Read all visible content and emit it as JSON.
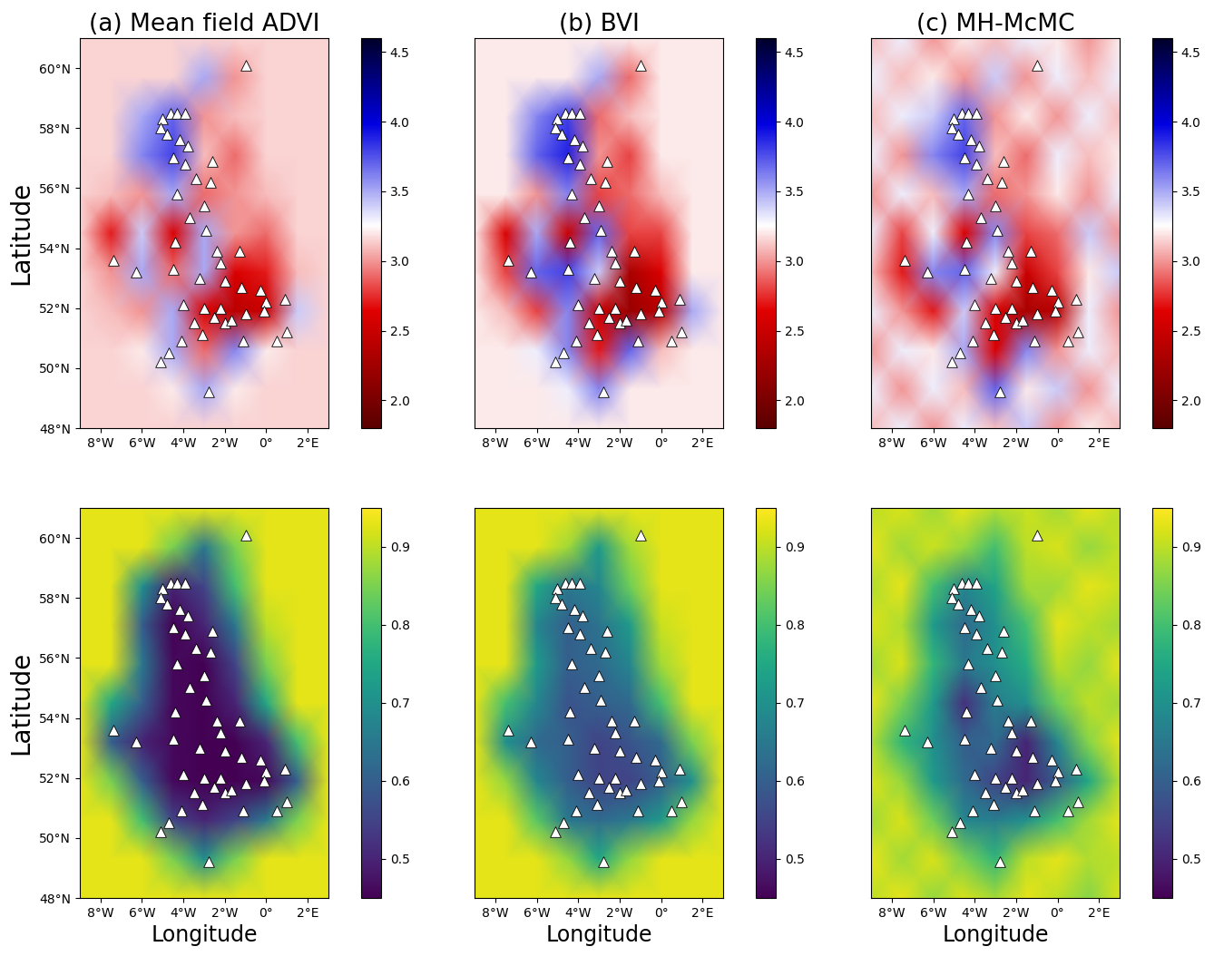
{
  "stations": {
    "lon": [
      -7.4,
      -6.3,
      -5.0,
      -4.6,
      -4.3,
      -3.9,
      -5.1,
      -4.8,
      -4.2,
      -3.8,
      -4.5,
      -3.9,
      -2.6,
      -3.4,
      -4.3,
      -3.0,
      -3.7,
      -2.9,
      -4.4,
      -2.4,
      -1.3,
      -4.5,
      -3.2,
      -2.0,
      -1.2,
      -0.3,
      0.9,
      -4.0,
      -3.0,
      -2.2,
      -2.5,
      -2.0,
      -1.7,
      -1.0,
      0.0,
      -0.1,
      1.0,
      0.5,
      -3.5,
      -4.1,
      -4.7,
      -5.1,
      -2.8,
      -1.1,
      -2.2,
      -3.1,
      -2.7,
      -1.0
    ],
    "lat": [
      53.6,
      53.2,
      58.3,
      58.5,
      58.5,
      58.5,
      58.0,
      57.8,
      57.6,
      57.4,
      57.0,
      56.8,
      56.9,
      56.3,
      55.8,
      55.4,
      55.0,
      54.6,
      54.2,
      53.9,
      53.9,
      53.3,
      53.0,
      52.9,
      52.7,
      52.6,
      52.3,
      52.1,
      52.0,
      52.0,
      51.7,
      51.5,
      51.6,
      51.8,
      52.2,
      51.9,
      51.2,
      50.9,
      51.5,
      50.9,
      50.5,
      50.2,
      49.2,
      50.9,
      53.5,
      51.1,
      56.2,
      60.1
    ]
  },
  "chart_data": [
    {
      "type": "heatmap",
      "title": "(a) Mean field ADVI",
      "ylabel": "Latitude",
      "tick_labels": true,
      "x": [
        -9,
        -7.5,
        -6,
        -4.5,
        -3,
        -1.5,
        0,
        1.5,
        3
      ],
      "y": [
        48,
        49.3,
        50.6,
        51.9,
        53.2,
        54.5,
        55.8,
        57.1,
        58.4,
        59.7,
        61
      ],
      "cells": [
        [
          3.15,
          3.15,
          3.15,
          3.15,
          3.15,
          3.15,
          3.15,
          3.15,
          3.15
        ],
        [
          3.15,
          3.15,
          3.15,
          3.2,
          3.5,
          3.2,
          3.15,
          3.15,
          3.15
        ],
        [
          3.15,
          3.15,
          3.2,
          3.5,
          2.9,
          3.6,
          3.2,
          3.15,
          3.15
        ],
        [
          3.15,
          3.1,
          3.0,
          3.5,
          2.6,
          2.4,
          2.5,
          3.4,
          3.15
        ],
        [
          3.15,
          3.0,
          3.5,
          2.9,
          3.5,
          2.6,
          2.7,
          3.1,
          3.15
        ],
        [
          3.15,
          2.7,
          3.4,
          2.6,
          3.5,
          3.0,
          2.9,
          3.15,
          3.15
        ],
        [
          3.15,
          3.1,
          3.0,
          3.5,
          2.9,
          3.0,
          3.1,
          3.15,
          3.15
        ],
        [
          3.15,
          3.15,
          3.6,
          3.8,
          3.1,
          2.9,
          3.15,
          3.15,
          3.15
        ],
        [
          3.15,
          3.15,
          3.5,
          3.7,
          3.0,
          3.1,
          3.15,
          3.15,
          3.15
        ],
        [
          3.15,
          3.15,
          3.15,
          3.15,
          3.5,
          3.0,
          3.15,
          3.15,
          3.15
        ],
        [
          3.15,
          3.15,
          3.15,
          3.15,
          3.15,
          3.15,
          3.15,
          3.15,
          3.15
        ]
      ],
      "color_range": [
        1.8,
        4.6
      ],
      "color_ticks": [
        2.0,
        2.5,
        3.0,
        3.5,
        4.0,
        4.5
      ],
      "xlim": [
        -9,
        3
      ],
      "ylim": [
        48,
        61
      ],
      "xticks": [
        {
          "value": -8,
          "label": "8°W"
        },
        {
          "value": -6,
          "label": "6°W"
        },
        {
          "value": -4,
          "label": "4°W"
        },
        {
          "value": -2,
          "label": "2°W"
        },
        {
          "value": 0,
          "label": "0°"
        },
        {
          "value": 2,
          "label": "2°E"
        }
      ],
      "yticks": [
        {
          "value": 48,
          "label": "48°N"
        },
        {
          "value": 50,
          "label": "50°N"
        },
        {
          "value": 52,
          "label": "52°N"
        },
        {
          "value": 54,
          "label": "54°N"
        },
        {
          "value": 56,
          "label": "56°N"
        },
        {
          "value": 58,
          "label": "58°N"
        },
        {
          "value": 60,
          "label": "60°N"
        }
      ]
    },
    {
      "type": "heatmap",
      "title": "(b) BVI",
      "tick_labels": "x",
      "x": [
        -9,
        -7.5,
        -6,
        -4.5,
        -3,
        -1.5,
        0,
        1.5,
        3
      ],
      "y": [
        48,
        49.3,
        50.6,
        51.9,
        53.2,
        54.5,
        55.8,
        57.1,
        58.4,
        59.7,
        61
      ],
      "cells": [
        [
          3.2,
          3.2,
          3.2,
          3.2,
          3.2,
          3.2,
          3.2,
          3.2,
          3.2
        ],
        [
          3.2,
          3.2,
          3.2,
          3.3,
          3.6,
          3.2,
          3.2,
          3.2,
          3.2
        ],
        [
          3.2,
          3.2,
          3.3,
          3.6,
          2.7,
          3.7,
          3.1,
          3.2,
          3.2
        ],
        [
          3.2,
          3.1,
          2.8,
          3.6,
          2.5,
          2.2,
          2.4,
          3.5,
          3.2
        ],
        [
          3.2,
          2.8,
          3.7,
          3.8,
          3.4,
          2.3,
          2.6,
          3.2,
          3.2
        ],
        [
          3.2,
          2.6,
          3.5,
          2.5,
          3.7,
          2.8,
          2.8,
          3.2,
          3.2
        ],
        [
          3.2,
          3.2,
          3.0,
          3.6,
          2.8,
          2.9,
          3.1,
          3.2,
          3.2
        ],
        [
          3.2,
          3.2,
          3.7,
          3.9,
          3.0,
          2.8,
          3.2,
          3.2,
          3.2
        ],
        [
          3.2,
          3.2,
          3.6,
          3.8,
          2.9,
          3.1,
          3.2,
          3.2,
          3.2
        ],
        [
          3.2,
          3.2,
          3.2,
          3.2,
          3.5,
          2.9,
          3.2,
          3.2,
          3.2
        ],
        [
          3.2,
          3.2,
          3.2,
          3.2,
          3.2,
          3.2,
          3.2,
          3.2,
          3.2
        ]
      ],
      "color_range": [
        1.8,
        4.6
      ],
      "color_ticks": [
        2.0,
        2.5,
        3.0,
        3.5,
        4.0,
        4.5
      ],
      "xlim": [
        -9,
        3
      ],
      "ylim": [
        48,
        61
      ],
      "xticks": [
        {
          "value": -8,
          "label": "8°W"
        },
        {
          "value": -6,
          "label": "6°W"
        },
        {
          "value": -4,
          "label": "4°W"
        },
        {
          "value": -2,
          "label": "2°W"
        },
        {
          "value": 0,
          "label": "0°"
        },
        {
          "value": 2,
          "label": "2°E"
        }
      ]
    },
    {
      "type": "heatmap",
      "title": "(c) MH-McMC",
      "tick_labels": "x",
      "x": [
        -9,
        -7.5,
        -6,
        -4.5,
        -3,
        -1.5,
        0,
        1.5,
        3
      ],
      "y": [
        48,
        49.3,
        50.6,
        51.9,
        53.2,
        54.5,
        55.8,
        57.1,
        58.4,
        59.7,
        61
      ],
      "cells": [
        [
          3.1,
          3.3,
          3.0,
          3.3,
          3.1,
          3.4,
          3.0,
          3.2,
          3.1
        ],
        [
          3.3,
          3.0,
          3.3,
          3.1,
          3.7,
          3.2,
          3.4,
          3.0,
          3.3
        ],
        [
          3.0,
          3.3,
          3.2,
          3.5,
          2.6,
          3.6,
          3.0,
          3.3,
          3.1
        ],
        [
          3.3,
          3.0,
          2.7,
          3.4,
          2.6,
          2.3,
          2.4,
          3.3,
          3.0
        ],
        [
          3.1,
          2.7,
          3.6,
          3.7,
          3.3,
          2.5,
          2.8,
          3.2,
          3.4
        ],
        [
          3.3,
          2.8,
          3.3,
          2.6,
          3.6,
          2.8,
          2.9,
          3.4,
          3.0
        ],
        [
          3.0,
          3.3,
          3.1,
          3.5,
          2.9,
          3.0,
          3.2,
          3.0,
          3.3
        ],
        [
          3.3,
          3.0,
          3.6,
          3.8,
          3.1,
          2.9,
          3.3,
          3.1,
          3.2
        ],
        [
          3.1,
          3.3,
          3.4,
          3.7,
          3.0,
          3.2,
          3.0,
          3.3,
          3.1
        ],
        [
          3.3,
          3.1,
          3.2,
          3.0,
          3.4,
          3.0,
          3.3,
          3.1,
          3.3
        ],
        [
          3.1,
          3.3,
          3.0,
          3.2,
          3.1,
          3.3,
          3.2,
          3.0,
          3.2
        ]
      ],
      "color_range": [
        1.8,
        4.6
      ],
      "color_ticks": [
        2.0,
        2.5,
        3.0,
        3.5,
        4.0,
        4.5
      ],
      "xlim": [
        -9,
        3
      ],
      "ylim": [
        48,
        61
      ],
      "xticks": [
        {
          "value": -8,
          "label": "8°W"
        },
        {
          "value": -6,
          "label": "6°W"
        },
        {
          "value": -4,
          "label": "4°W"
        },
        {
          "value": -2,
          "label": "2°W"
        },
        {
          "value": 0,
          "label": "0°"
        },
        {
          "value": 2,
          "label": "2°E"
        }
      ]
    },
    {
      "type": "heatmap",
      "xlabel": "Longitude",
      "ylabel": "Latitude",
      "tick_labels": true,
      "x": [
        -9,
        -7.5,
        -6,
        -4.5,
        -3,
        -1.5,
        0,
        1.5,
        3
      ],
      "y": [
        48,
        49.3,
        50.6,
        51.9,
        53.2,
        54.5,
        55.8,
        57.1,
        58.4,
        59.7,
        61
      ],
      "cells": [
        [
          0.93,
          0.93,
          0.93,
          0.93,
          0.93,
          0.93,
          0.93,
          0.93,
          0.93
        ],
        [
          0.93,
          0.93,
          0.93,
          0.85,
          0.7,
          0.85,
          0.93,
          0.93,
          0.93
        ],
        [
          0.93,
          0.93,
          0.8,
          0.55,
          0.5,
          0.55,
          0.65,
          0.85,
          0.93
        ],
        [
          0.93,
          0.85,
          0.6,
          0.46,
          0.45,
          0.45,
          0.46,
          0.6,
          0.93
        ],
        [
          0.93,
          0.6,
          0.5,
          0.46,
          0.45,
          0.45,
          0.5,
          0.8,
          0.93
        ],
        [
          0.93,
          0.75,
          0.6,
          0.46,
          0.45,
          0.5,
          0.75,
          0.93,
          0.93
        ],
        [
          0.93,
          0.93,
          0.65,
          0.46,
          0.45,
          0.55,
          0.85,
          0.93,
          0.93
        ],
        [
          0.93,
          0.93,
          0.6,
          0.45,
          0.5,
          0.65,
          0.9,
          0.93,
          0.93
        ],
        [
          0.93,
          0.93,
          0.7,
          0.5,
          0.55,
          0.8,
          0.93,
          0.93,
          0.93
        ],
        [
          0.93,
          0.93,
          0.93,
          0.85,
          0.65,
          0.85,
          0.93,
          0.93,
          0.93
        ],
        [
          0.93,
          0.93,
          0.93,
          0.93,
          0.93,
          0.93,
          0.93,
          0.93,
          0.93
        ]
      ],
      "color_range": [
        0.45,
        0.95
      ],
      "color_ticks": [
        0.5,
        0.6,
        0.7,
        0.8,
        0.9
      ],
      "xlim": [
        -9,
        3
      ],
      "ylim": [
        48,
        61
      ],
      "xticks": [
        {
          "value": -8,
          "label": "8°W"
        },
        {
          "value": -6,
          "label": "6°W"
        },
        {
          "value": -4,
          "label": "4°W"
        },
        {
          "value": -2,
          "label": "2°W"
        },
        {
          "value": 0,
          "label": "0°"
        },
        {
          "value": 2,
          "label": "2°E"
        }
      ],
      "yticks": [
        {
          "value": 48,
          "label": "48°N"
        },
        {
          "value": 50,
          "label": "50°N"
        },
        {
          "value": 52,
          "label": "52°N"
        },
        {
          "value": 54,
          "label": "54°N"
        },
        {
          "value": 56,
          "label": "56°N"
        },
        {
          "value": 58,
          "label": "58°N"
        },
        {
          "value": 60,
          "label": "60°N"
        }
      ]
    },
    {
      "type": "heatmap",
      "xlabel": "Longitude",
      "tick_labels": "x",
      "x": [
        -9,
        -7.5,
        -6,
        -4.5,
        -3,
        -1.5,
        0,
        1.5,
        3
      ],
      "y": [
        48,
        49.3,
        50.6,
        51.9,
        53.2,
        54.5,
        55.8,
        57.1,
        58.4,
        59.7,
        61
      ],
      "cells": [
        [
          0.93,
          0.93,
          0.93,
          0.93,
          0.93,
          0.93,
          0.93,
          0.93,
          0.93
        ],
        [
          0.93,
          0.93,
          0.93,
          0.87,
          0.75,
          0.87,
          0.93,
          0.93,
          0.93
        ],
        [
          0.93,
          0.93,
          0.82,
          0.65,
          0.62,
          0.65,
          0.72,
          0.87,
          0.93
        ],
        [
          0.93,
          0.87,
          0.68,
          0.6,
          0.55,
          0.55,
          0.6,
          0.7,
          0.93
        ],
        [
          0.93,
          0.7,
          0.62,
          0.6,
          0.55,
          0.58,
          0.62,
          0.85,
          0.93
        ],
        [
          0.93,
          0.8,
          0.68,
          0.58,
          0.6,
          0.62,
          0.8,
          0.93,
          0.93
        ],
        [
          0.93,
          0.93,
          0.72,
          0.6,
          0.62,
          0.68,
          0.88,
          0.93,
          0.93
        ],
        [
          0.93,
          0.93,
          0.68,
          0.6,
          0.64,
          0.72,
          0.91,
          0.93,
          0.93
        ],
        [
          0.93,
          0.93,
          0.75,
          0.65,
          0.68,
          0.84,
          0.93,
          0.93,
          0.93
        ],
        [
          0.93,
          0.93,
          0.93,
          0.88,
          0.72,
          0.88,
          0.93,
          0.93,
          0.93
        ],
        [
          0.93,
          0.93,
          0.93,
          0.93,
          0.93,
          0.93,
          0.93,
          0.93,
          0.93
        ]
      ],
      "color_range": [
        0.45,
        0.95
      ],
      "color_ticks": [
        0.5,
        0.6,
        0.7,
        0.8,
        0.9
      ],
      "xlim": [
        -9,
        3
      ],
      "ylim": [
        48,
        61
      ],
      "xticks": [
        {
          "value": -8,
          "label": "8°W"
        },
        {
          "value": -6,
          "label": "6°W"
        },
        {
          "value": -4,
          "label": "4°W"
        },
        {
          "value": -2,
          "label": "2°W"
        },
        {
          "value": 0,
          "label": "0°"
        },
        {
          "value": 2,
          "label": "2°E"
        }
      ]
    },
    {
      "type": "heatmap",
      "xlabel": "Longitude",
      "tick_labels": "x",
      "x": [
        -9,
        -7.5,
        -6,
        -4.5,
        -3,
        -1.5,
        0,
        1.5,
        3
      ],
      "y": [
        48,
        49.3,
        50.6,
        51.9,
        53.2,
        54.5,
        55.8,
        57.1,
        58.4,
        59.7,
        61
      ],
      "cells": [
        [
          0.9,
          0.93,
          0.87,
          0.92,
          0.88,
          0.93,
          0.9,
          0.86,
          0.92
        ],
        [
          0.93,
          0.88,
          0.92,
          0.85,
          0.78,
          0.9,
          0.93,
          0.89,
          0.9
        ],
        [
          0.88,
          0.92,
          0.84,
          0.68,
          0.66,
          0.7,
          0.8,
          0.88,
          0.93
        ],
        [
          0.92,
          0.87,
          0.72,
          0.62,
          0.55,
          0.5,
          0.6,
          0.75,
          0.89
        ],
        [
          0.89,
          0.78,
          0.7,
          0.6,
          0.62,
          0.5,
          0.68,
          0.86,
          0.93
        ],
        [
          0.93,
          0.85,
          0.72,
          0.52,
          0.66,
          0.7,
          0.84,
          0.9,
          0.88
        ],
        [
          0.88,
          0.92,
          0.78,
          0.65,
          0.7,
          0.76,
          0.9,
          0.87,
          0.93
        ],
        [
          0.92,
          0.89,
          0.72,
          0.62,
          0.7,
          0.8,
          0.93,
          0.9,
          0.88
        ],
        [
          0.89,
          0.93,
          0.8,
          0.68,
          0.74,
          0.88,
          0.88,
          0.93,
          0.91
        ],
        [
          0.93,
          0.88,
          0.91,
          0.87,
          0.8,
          0.9,
          0.92,
          0.87,
          0.9
        ],
        [
          0.9,
          0.92,
          0.88,
          0.93,
          0.89,
          0.91,
          0.88,
          0.93,
          0.9
        ]
      ],
      "color_range": [
        0.45,
        0.95
      ],
      "color_ticks": [
        0.5,
        0.6,
        0.7,
        0.8,
        0.9
      ],
      "xlim": [
        -9,
        3
      ],
      "ylim": [
        48,
        61
      ],
      "xticks": [
        {
          "value": -8,
          "label": "8°W"
        },
        {
          "value": -6,
          "label": "6°W"
        },
        {
          "value": -4,
          "label": "4°W"
        },
        {
          "value": -2,
          "label": "2°W"
        },
        {
          "value": 0,
          "label": "0°"
        },
        {
          "value": 2,
          "label": "2°E"
        }
      ]
    }
  ]
}
